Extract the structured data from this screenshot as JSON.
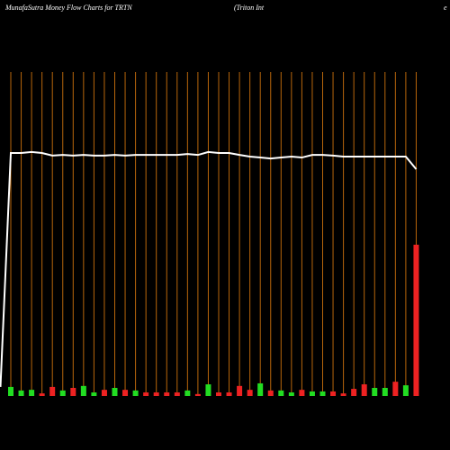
{
  "chart_data": {
    "type": "moneyflow",
    "title": "MunafaSutra  Money Flow  Charts for TRTN",
    "subtitle": "(Triton  Int",
    "title_tail": "e",
    "categories": [
      null,
      null,
      null,
      null,
      null,
      null,
      null,
      null,
      null,
      null,
      null,
      null,
      null,
      null,
      null,
      null,
      null,
      null,
      null,
      null,
      null,
      null,
      null,
      null,
      null,
      null,
      null,
      null,
      null,
      null,
      null,
      null,
      null,
      null,
      null,
      null,
      null,
      null,
      null,
      null,
      null
    ],
    "ylim": [
      0,
      100
    ],
    "series": [
      {
        "kind": "bar",
        "values": [
          null,
          2.8,
          1.7,
          1.9,
          0.8,
          2.8,
          1.7,
          2.5,
          3.1,
          1.1,
          1.9,
          2.5,
          1.9,
          1.7,
          1.1,
          1.1,
          1.1,
          1.1,
          1.7,
          0.6,
          3.6,
          1.1,
          1.1,
          3.1,
          1.9,
          3.9,
          1.7,
          1.7,
          1.1,
          1.9,
          1.4,
          1.4,
          1.4,
          0.8,
          2.2,
          3.6,
          2.5,
          2.5,
          4.4,
          3.3,
          46.7
        ],
        "colors": [
          null,
          "#22dd22",
          "#22dd22",
          "#22dd22",
          "#ee2222",
          "#ee2222",
          "#22dd22",
          "#ee2222",
          "#22dd22",
          "#22dd22",
          "#ee2222",
          "#22dd22",
          "#ee2222",
          "#22dd22",
          "#ee2222",
          "#ee2222",
          "#ee2222",
          "#ee2222",
          "#22dd22",
          "#ee2222",
          "#22dd22",
          "#ee2222",
          "#ee2222",
          "#ee2222",
          "#ee2222",
          "#22dd22",
          "#ee2222",
          "#22dd22",
          "#22dd22",
          "#ee2222",
          "#22dd22",
          "#22dd22",
          "#ee2222",
          "#ee2222",
          "#ee2222",
          "#ee2222",
          "#22dd22",
          "#22dd22",
          "#ee2222",
          "#22dd22",
          "#ee2222"
        ]
      },
      {
        "kind": "line",
        "color": "#ffffff",
        "values": [
          2.8,
          75,
          75,
          75.3,
          75,
          74.2,
          74.4,
          74.2,
          74.4,
          74.2,
          74.2,
          74.4,
          74.2,
          74.4,
          74.4,
          74.4,
          74.4,
          74.4,
          74.7,
          74.4,
          75.3,
          75,
          75,
          74.4,
          73.9,
          73.6,
          73.3,
          73.6,
          73.9,
          73.6,
          74.4,
          74.4,
          74.2,
          73.9,
          73.9,
          73.9,
          73.9,
          73.9,
          73.9,
          73.9,
          70
        ]
      }
    ],
    "gridline_color": "#b8660b"
  }
}
